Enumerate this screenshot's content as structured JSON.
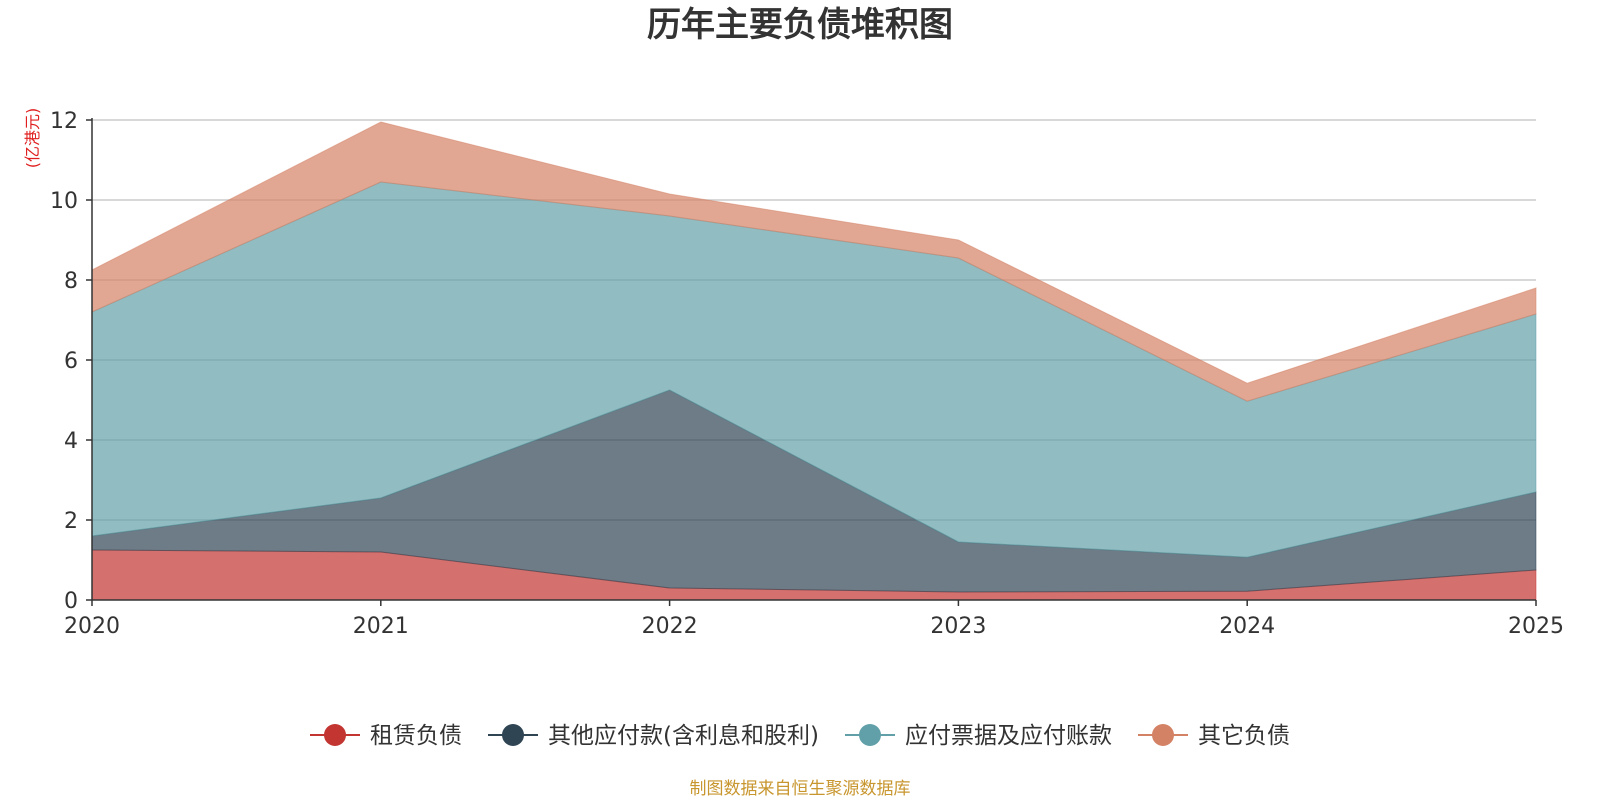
{
  "chart_data": {
    "type": "area",
    "stacked": true,
    "title": "历年主要负债堆积图",
    "unit_label": "(亿港元)",
    "xlabel": "",
    "ylabel": "(亿港元)",
    "x": [
      "2020",
      "2021",
      "2022",
      "2023",
      "2024",
      "2025"
    ],
    "ylim": [
      0,
      12
    ],
    "yticks": [
      0,
      2,
      4,
      6,
      8,
      10,
      12
    ],
    "grid": true,
    "legend_position": "bottom",
    "series": [
      {
        "name": "租赁负债",
        "color": "#c23531",
        "values": [
          1.25,
          1.2,
          0.3,
          0.2,
          0.22,
          0.75
        ]
      },
      {
        "name": "其他应付款(含利息和股利)",
        "color": "#2f4554",
        "values": [
          0.35,
          1.35,
          4.95,
          1.25,
          0.85,
          1.95
        ]
      },
      {
        "name": "应付票据及应付账款",
        "color": "#61a0a8",
        "values": [
          5.6,
          7.9,
          4.35,
          7.1,
          3.9,
          4.45
        ]
      },
      {
        "name": "其它负债",
        "color": "#d48265",
        "values": [
          1.05,
          1.5,
          0.55,
          0.45,
          0.45,
          0.65
        ]
      }
    ],
    "source": "制图数据来自恒生聚源数据库"
  }
}
